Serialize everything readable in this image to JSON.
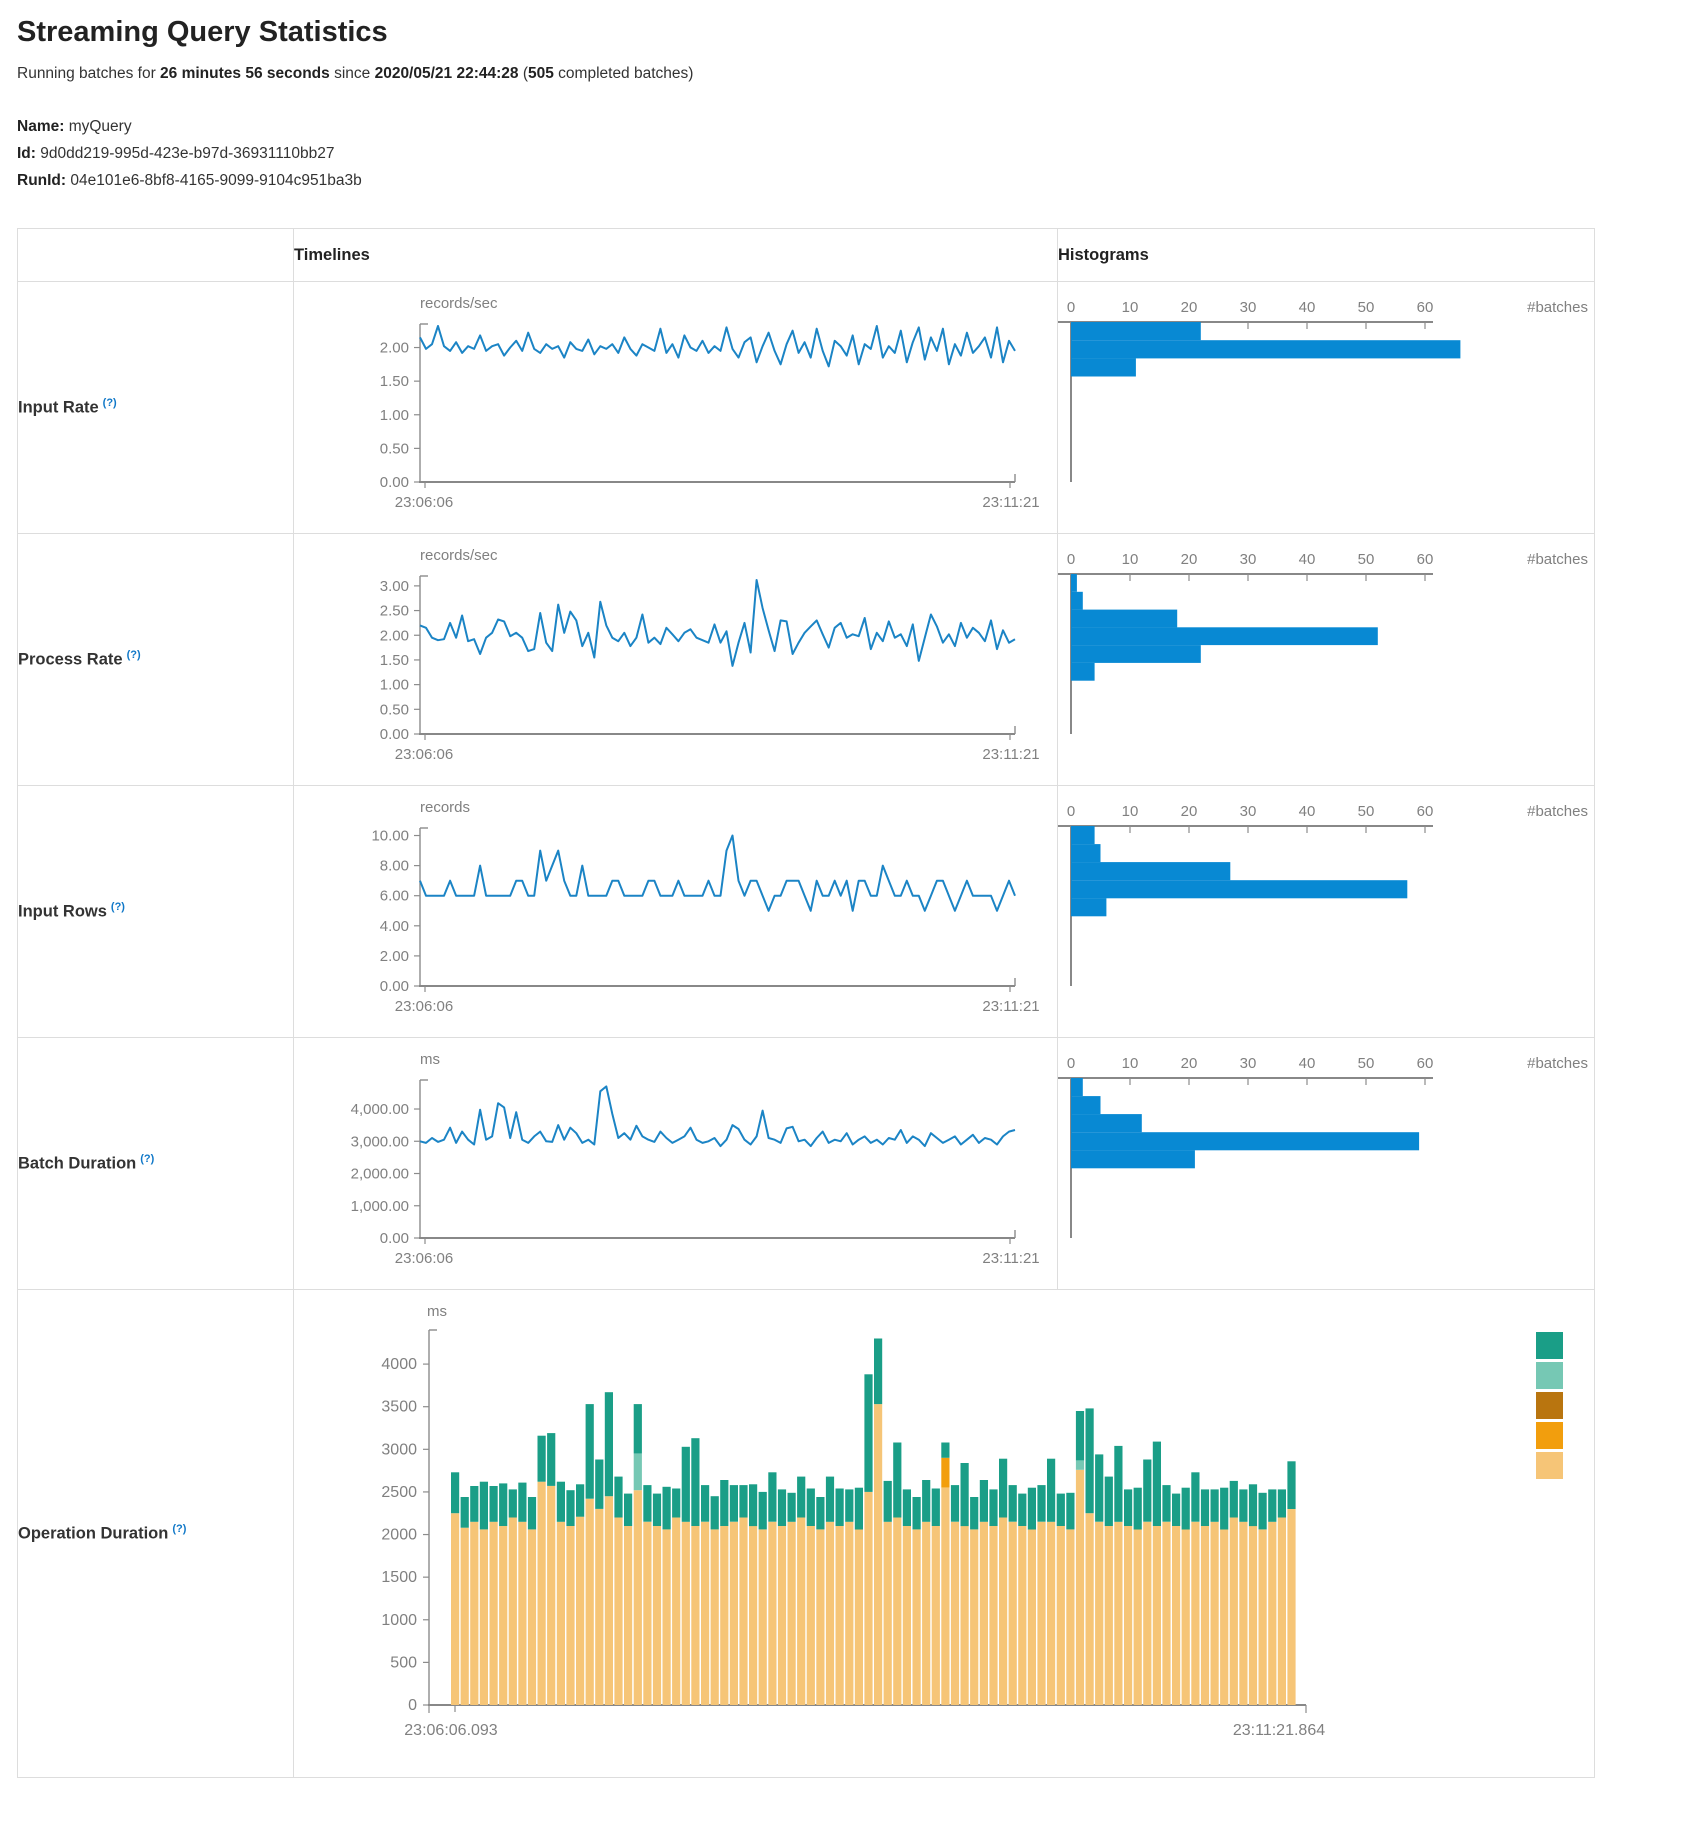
{
  "page": {
    "title": "Streaming Query Statistics",
    "subtitle": {
      "prefix": "Running batches for ",
      "duration": "26 minutes 56 seconds",
      "mid": " since ",
      "start_time": "2020/05/21 22:44:28",
      "paren": " (",
      "count": "505",
      "suffix": " completed batches)"
    },
    "meta": {
      "name_label": "Name:",
      "name": " myQuery",
      "id_label": "Id:",
      "id": " 9d0dd219-995d-423e-b97d-36931110bb27",
      "runid_label": "RunId:",
      "runid": " 04e101e6-8bf8-4165-9099-9104c951ba3b"
    }
  },
  "table": {
    "header": {
      "timelines": "Timelines",
      "histograms": "Histograms"
    },
    "row_labels": [
      {
        "label": "Input Rate",
        "help": "(?)"
      },
      {
        "label": "Process Rate",
        "help": "(?)"
      },
      {
        "label": "Input Rows",
        "help": "(?)"
      },
      {
        "label": "Batch Duration",
        "help": "(?)"
      },
      {
        "label": "Operation Duration",
        "help": "(?)"
      }
    ]
  },
  "colors": {
    "line": "#1b84c5",
    "histogram_bar": "#0889d3",
    "axis": "#8c8c8c",
    "tick_text": "#808080",
    "legend": [
      "#1a9e87",
      "#76c8b4",
      "#b9750f",
      "#f29e0d",
      "#f6c577"
    ]
  },
  "chart_data": [
    {
      "name": "input-rate",
      "type": "line",
      "unit": "records/sec",
      "x_start_label": "23:06:06",
      "x_end_label": "23:11:21",
      "ymax": 2.35,
      "yticks": [
        0,
        0.5,
        1,
        1.5,
        2
      ],
      "ytick_labels": [
        "0.00",
        "0.50",
        "1.00",
        "1.50",
        "2.00"
      ],
      "values": [
        2.15,
        1.98,
        2.05,
        2.32,
        2.02,
        1.95,
        2.08,
        1.92,
        2.02,
        1.98,
        2.18,
        1.95,
        2.02,
        2.05,
        1.88,
        2.0,
        2.1,
        1.95,
        2.22,
        1.98,
        1.92,
        2.05,
        1.98,
        2.02,
        1.85,
        2.08,
        1.98,
        1.95,
        2.12,
        1.9,
        2.02,
        1.98,
        2.05,
        1.92,
        2.15,
        1.98,
        1.88,
        2.05,
        2.0,
        1.95,
        2.28,
        1.92,
        2.05,
        1.85,
        2.18,
        2.0,
        1.95,
        2.1,
        1.92,
        2.02,
        1.95,
        2.3,
        1.98,
        1.85,
        2.08,
        2.15,
        1.78,
        2.02,
        2.22,
        1.95,
        1.75,
        2.05,
        2.25,
        1.92,
        2.08,
        1.85,
        2.28,
        1.95,
        1.72,
        2.1,
        2.02,
        1.88,
        2.18,
        1.75,
        2.05,
        1.98,
        2.32,
        1.85,
        2.02,
        1.92,
        2.25,
        1.78,
        2.08,
        2.3,
        1.82,
        2.15,
        1.95,
        2.28,
        1.75,
        2.05,
        1.88,
        2.22,
        1.92,
        2.02,
        2.15,
        1.85,
        2.3,
        1.78,
        2.1,
        1.95
      ],
      "histogram": {
        "xticks": [
          0,
          10,
          20,
          30,
          40,
          50,
          60
        ],
        "xlabel": "#batches",
        "bins": [
          {
            "hi": 2.35,
            "lo": 2.08,
            "count": 22
          },
          {
            "hi": 2.08,
            "lo": 1.81,
            "count": 66
          },
          {
            "hi": 1.81,
            "lo": 1.54,
            "count": 11
          }
        ]
      }
    },
    {
      "name": "process-rate",
      "type": "line",
      "unit": "records/sec",
      "x_start_label": "23:06:06",
      "x_end_label": "23:11:21",
      "ymax": 3.2,
      "yticks": [
        0,
        0.5,
        1,
        1.5,
        2,
        2.5,
        3
      ],
      "ytick_labels": [
        "0.00",
        "0.50",
        "1.00",
        "1.50",
        "2.00",
        "2.50",
        "3.00"
      ],
      "values": [
        2.2,
        2.15,
        1.95,
        1.9,
        1.92,
        2.25,
        1.95,
        2.4,
        1.88,
        1.92,
        1.62,
        1.95,
        2.05,
        2.32,
        2.28,
        1.98,
        2.05,
        1.95,
        1.68,
        1.72,
        2.45,
        1.85,
        1.68,
        2.62,
        2.05,
        2.48,
        2.3,
        1.78,
        2.05,
        1.55,
        2.68,
        2.2,
        1.95,
        1.88,
        2.05,
        1.78,
        1.95,
        2.42,
        1.85,
        1.95,
        1.82,
        2.15,
        2.02,
        1.88,
        2.05,
        2.12,
        1.95,
        1.9,
        1.85,
        2.22,
        1.85,
        2.08,
        1.38,
        1.85,
        2.25,
        1.65,
        3.12,
        2.55,
        2.1,
        1.68,
        2.3,
        2.28,
        1.62,
        1.85,
        2.05,
        2.18,
        2.3,
        2.02,
        1.75,
        2.15,
        2.25,
        1.95,
        2.02,
        1.98,
        2.35,
        1.72,
        2.05,
        1.88,
        2.28,
        1.95,
        2.02,
        1.78,
        2.22,
        1.48,
        1.95,
        2.42,
        2.18,
        1.85,
        2.02,
        1.78,
        2.25,
        1.95,
        2.15,
        2.05,
        1.88,
        2.3,
        1.72,
        2.1,
        1.85,
        1.92
      ],
      "histogram": {
        "xticks": [
          0,
          10,
          20,
          30,
          40,
          50,
          60
        ],
        "xlabel": "#batches",
        "bins": [
          {
            "hi": 3.2,
            "lo": 2.84,
            "count": 1
          },
          {
            "hi": 2.84,
            "lo": 2.48,
            "count": 2
          },
          {
            "hi": 2.48,
            "lo": 2.12,
            "count": 18
          },
          {
            "hi": 2.12,
            "lo": 1.76,
            "count": 52
          },
          {
            "hi": 1.76,
            "lo": 1.4,
            "count": 22
          },
          {
            "hi": 1.4,
            "lo": 1.04,
            "count": 4
          }
        ]
      }
    },
    {
      "name": "input-rows",
      "type": "line",
      "unit": "records",
      "x_start_label": "23:06:06",
      "x_end_label": "23:11:21",
      "ymax": 10.5,
      "yticks": [
        0,
        2,
        4,
        6,
        8,
        10
      ],
      "ytick_labels": [
        "0.00",
        "2.00",
        "4.00",
        "6.00",
        "8.00",
        "10.00"
      ],
      "values": [
        7,
        6,
        6,
        6,
        6,
        7,
        6,
        6,
        6,
        6,
        8,
        6,
        6,
        6,
        6,
        6,
        7,
        7,
        6,
        6,
        9,
        7,
        8,
        9,
        7,
        6,
        6,
        8,
        6,
        6,
        6,
        6,
        7,
        7,
        6,
        6,
        6,
        6,
        7,
        7,
        6,
        6,
        6,
        7,
        6,
        6,
        6,
        6,
        7,
        6,
        6,
        9,
        10,
        7,
        6,
        7,
        7,
        6,
        5,
        6,
        6,
        7,
        7,
        7,
        6,
        5,
        7,
        6,
        6,
        7,
        6,
        7,
        5,
        7,
        7,
        6,
        6,
        8,
        7,
        6,
        6,
        7,
        6,
        6,
        5,
        6,
        7,
        7,
        6,
        5,
        6,
        7,
        6,
        6,
        6,
        6,
        5,
        6,
        7,
        6
      ],
      "histogram": {
        "xticks": [
          0,
          10,
          20,
          30,
          40,
          50,
          60
        ],
        "xlabel": "#batches",
        "bins": [
          {
            "hi": 10.5,
            "lo": 9.3,
            "count": 4
          },
          {
            "hi": 9.3,
            "lo": 8.1,
            "count": 5
          },
          {
            "hi": 8.1,
            "lo": 6.9,
            "count": 27
          },
          {
            "hi": 6.9,
            "lo": 5.7,
            "count": 57
          },
          {
            "hi": 5.7,
            "lo": 4.5,
            "count": 6
          }
        ]
      }
    },
    {
      "name": "batch-duration",
      "type": "line",
      "unit": "ms",
      "x_start_label": "23:06:06",
      "x_end_label": "23:11:21",
      "ymax": 4900,
      "yticks": [
        0,
        1000,
        2000,
        3000,
        4000
      ],
      "ytick_labels": [
        "0.00",
        "1,000.00",
        "2,000.00",
        "3,000.00",
        "4,000.00"
      ],
      "values": [
        3000,
        2950,
        3100,
        2980,
        3050,
        3420,
        2950,
        3300,
        3050,
        2900,
        3980,
        3050,
        3150,
        4180,
        4050,
        3100,
        3900,
        3050,
        2950,
        3150,
        3300,
        3000,
        2980,
        3500,
        3050,
        3420,
        3250,
        2950,
        3050,
        2900,
        4550,
        4700,
        3850,
        3100,
        3250,
        3050,
        3480,
        3150,
        3050,
        2980,
        3300,
        3100,
        2950,
        3050,
        3150,
        3420,
        3050,
        2950,
        3000,
        3100,
        2850,
        3050,
        3500,
        3380,
        3050,
        2900,
        3150,
        3950,
        3100,
        3050,
        2950,
        3400,
        3450,
        3000,
        3050,
        2850,
        3100,
        3300,
        2950,
        3050,
        3000,
        3250,
        2900,
        3050,
        3150,
        2950,
        3050,
        2900,
        3100,
        3050,
        3350,
        2950,
        3150,
        3050,
        2850,
        3250,
        3100,
        2950,
        3050,
        3150,
        2900,
        3050,
        3200,
        2950,
        3100,
        3050,
        2900,
        3150,
        3300,
        3350
      ],
      "histogram": {
        "xticks": [
          0,
          10,
          20,
          30,
          40,
          50,
          60
        ],
        "xlabel": "#batches",
        "bins": [
          {
            "hi": 4900,
            "lo": 4340,
            "count": 2
          },
          {
            "hi": 4340,
            "lo": 3780,
            "count": 5
          },
          {
            "hi": 3780,
            "lo": 3220,
            "count": 12
          },
          {
            "hi": 3220,
            "lo": 2660,
            "count": 59
          },
          {
            "hi": 2660,
            "lo": 2100,
            "count": 21
          }
        ]
      }
    },
    {
      "name": "operation-duration",
      "type": "stacked-bar",
      "unit": "ms",
      "x_start_label": "23:06:06.093",
      "x_end_label": "23:11:21.864",
      "ymax": 4400,
      "yticks": [
        0,
        500,
        1000,
        1500,
        2000,
        2500,
        3000,
        3500,
        4000
      ],
      "ytick_labels": [
        "0",
        "500",
        "1000",
        "1500",
        "2000",
        "2500",
        "3000",
        "3500",
        "4000"
      ],
      "stack_order": [
        "tan",
        "orange",
        "light-teal",
        "teal"
      ],
      "stack_colors": [
        "#f6c577",
        "#f29e0d",
        "#76c8b4",
        "#1a9e87"
      ],
      "bars": [
        [
          2250,
          0,
          0,
          480
        ],
        [
          2080,
          0,
          0,
          360
        ],
        [
          2150,
          0,
          0,
          420
        ],
        [
          2060,
          0,
          0,
          560
        ],
        [
          2150,
          0,
          0,
          420
        ],
        [
          2100,
          0,
          0,
          500
        ],
        [
          2200,
          0,
          0,
          330
        ],
        [
          2150,
          0,
          0,
          460
        ],
        [
          2060,
          0,
          0,
          380
        ],
        [
          2620,
          0,
          0,
          540
        ],
        [
          2570,
          0,
          0,
          620
        ],
        [
          2150,
          0,
          0,
          470
        ],
        [
          2100,
          0,
          0,
          420
        ],
        [
          2210,
          0,
          0,
          380
        ],
        [
          2420,
          0,
          0,
          1110
        ],
        [
          2300,
          0,
          0,
          580
        ],
        [
          2450,
          0,
          0,
          1220
        ],
        [
          2200,
          0,
          0,
          480
        ],
        [
          2100,
          0,
          0,
          380
        ],
        [
          2520,
          0,
          430,
          580
        ],
        [
          2150,
          0,
          0,
          430
        ],
        [
          2100,
          0,
          0,
          380
        ],
        [
          2060,
          0,
          0,
          500
        ],
        [
          2200,
          0,
          0,
          340
        ],
        [
          2150,
          0,
          0,
          880
        ],
        [
          2100,
          0,
          0,
          1030
        ],
        [
          2150,
          0,
          0,
          430
        ],
        [
          2060,
          0,
          0,
          390
        ],
        [
          2100,
          0,
          0,
          540
        ],
        [
          2150,
          0,
          0,
          430
        ],
        [
          2200,
          0,
          0,
          380
        ],
        [
          2100,
          0,
          0,
          490
        ],
        [
          2060,
          0,
          0,
          440
        ],
        [
          2150,
          0,
          0,
          580
        ],
        [
          2100,
          0,
          0,
          430
        ],
        [
          2150,
          0,
          0,
          340
        ],
        [
          2200,
          0,
          0,
          480
        ],
        [
          2100,
          0,
          0,
          440
        ],
        [
          2060,
          0,
          0,
          380
        ],
        [
          2150,
          0,
          0,
          530
        ],
        [
          2100,
          0,
          0,
          440
        ],
        [
          2150,
          0,
          0,
          380
        ],
        [
          2060,
          0,
          0,
          490
        ],
        [
          2500,
          0,
          0,
          1380
        ],
        [
          3530,
          0,
          0,
          770
        ],
        [
          2150,
          0,
          0,
          480
        ],
        [
          2200,
          0,
          0,
          880
        ],
        [
          2100,
          0,
          0,
          430
        ],
        [
          2060,
          0,
          0,
          380
        ],
        [
          2150,
          0,
          0,
          490
        ],
        [
          2100,
          0,
          0,
          440
        ],
        [
          2550,
          350,
          0,
          180
        ],
        [
          2150,
          0,
          0,
          430
        ],
        [
          2100,
          0,
          0,
          740
        ],
        [
          2060,
          0,
          0,
          380
        ],
        [
          2150,
          0,
          0,
          490
        ],
        [
          2100,
          0,
          0,
          430
        ],
        [
          2200,
          0,
          0,
          690
        ],
        [
          2150,
          0,
          0,
          430
        ],
        [
          2100,
          0,
          0,
          380
        ],
        [
          2060,
          0,
          0,
          490
        ],
        [
          2150,
          0,
          0,
          430
        ],
        [
          2150,
          0,
          0,
          740
        ],
        [
          2100,
          0,
          0,
          380
        ],
        [
          2060,
          0,
          0,
          430
        ],
        [
          2760,
          0,
          110,
          580
        ],
        [
          2250,
          0,
          0,
          1230
        ],
        [
          2150,
          0,
          0,
          790
        ],
        [
          2100,
          0,
          0,
          580
        ],
        [
          2150,
          0,
          0,
          890
        ],
        [
          2100,
          0,
          0,
          430
        ],
        [
          2060,
          0,
          0,
          490
        ],
        [
          2150,
          0,
          0,
          730
        ],
        [
          2100,
          0,
          0,
          990
        ],
        [
          2150,
          0,
          0,
          430
        ],
        [
          2100,
          0,
          0,
          380
        ],
        [
          2060,
          0,
          0,
          490
        ],
        [
          2150,
          0,
          0,
          580
        ],
        [
          2100,
          0,
          0,
          430
        ],
        [
          2150,
          0,
          0,
          380
        ],
        [
          2060,
          0,
          0,
          490
        ],
        [
          2200,
          0,
          0,
          430
        ],
        [
          2150,
          0,
          0,
          380
        ],
        [
          2100,
          0,
          0,
          490
        ],
        [
          2060,
          0,
          0,
          430
        ],
        [
          2150,
          0,
          0,
          380
        ],
        [
          2200,
          0,
          0,
          330
        ],
        [
          2300,
          0,
          0,
          560
        ]
      ]
    }
  ]
}
